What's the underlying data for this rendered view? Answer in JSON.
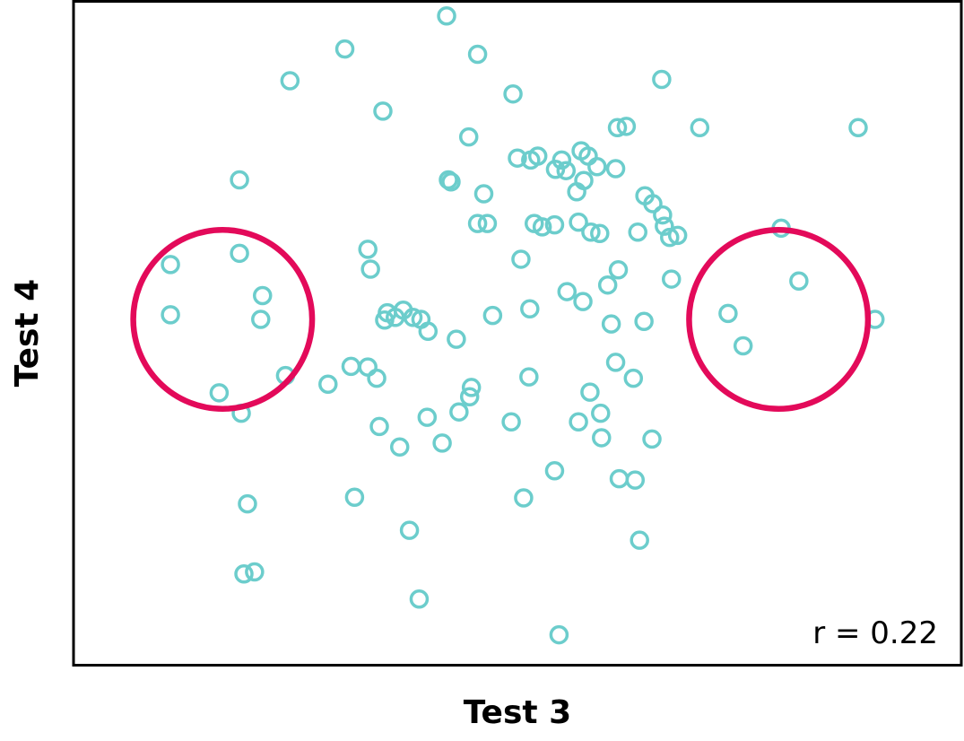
{
  "chart_data": {
    "type": "scatter",
    "title": "",
    "xlabel": "Test 3",
    "ylabel": "Test 4",
    "annotation": "r = 0.22",
    "xlim": [
      0,
      100
    ],
    "ylim": [
      0,
      100
    ],
    "grid": false,
    "ticks_shown": false,
    "point_color": "#6ccdcc",
    "highlight_color": "#e30a5a",
    "series": [
      {
        "values": [
          {
            "x": 42,
            "y": 98
          },
          {
            "x": 30.5,
            "y": 93
          },
          {
            "x": 45.5,
            "y": 92.2
          },
          {
            "x": 24.3,
            "y": 88.2
          },
          {
            "x": 34.8,
            "y": 83.6
          },
          {
            "x": 49.5,
            "y": 86.2
          },
          {
            "x": 66.3,
            "y": 88.4
          },
          {
            "x": 70.6,
            "y": 81.1
          },
          {
            "x": 88.5,
            "y": 81.1
          },
          {
            "x": 61.3,
            "y": 81.1
          },
          {
            "x": 62.3,
            "y": 81.3
          },
          {
            "x": 44.5,
            "y": 79.7
          },
          {
            "x": 57.2,
            "y": 77.6
          },
          {
            "x": 50,
            "y": 76.5
          },
          {
            "x": 51.5,
            "y": 76.2
          },
          {
            "x": 52.3,
            "y": 76.8
          },
          {
            "x": 55,
            "y": 76.2
          },
          {
            "x": 55.5,
            "y": 74.6
          },
          {
            "x": 54.3,
            "y": 74.8
          },
          {
            "x": 58,
            "y": 76.8
          },
          {
            "x": 59,
            "y": 75.2
          },
          {
            "x": 57.5,
            "y": 73.1
          },
          {
            "x": 61.1,
            "y": 74.9
          },
          {
            "x": 42.2,
            "y": 73.2
          },
          {
            "x": 42.5,
            "y": 72.9
          },
          {
            "x": 18.6,
            "y": 73.2
          },
          {
            "x": 46.2,
            "y": 71.1
          },
          {
            "x": 56.7,
            "y": 71.4
          },
          {
            "x": 64.4,
            "y": 70.8
          },
          {
            "x": 65.3,
            "y": 69.6
          },
          {
            "x": 45.5,
            "y": 66.6
          },
          {
            "x": 46.6,
            "y": 66.6
          },
          {
            "x": 51.9,
            "y": 66.6
          },
          {
            "x": 52.8,
            "y": 66.1
          },
          {
            "x": 54.2,
            "y": 66.4
          },
          {
            "x": 56.9,
            "y": 66.8
          },
          {
            "x": 58.3,
            "y": 65.3
          },
          {
            "x": 59.3,
            "y": 65.1
          },
          {
            "x": 63.6,
            "y": 65.3
          },
          {
            "x": 66.4,
            "y": 67.9
          },
          {
            "x": 66.6,
            "y": 66.2
          },
          {
            "x": 67.2,
            "y": 64.5
          },
          {
            "x": 68.1,
            "y": 64.8
          },
          {
            "x": 79.8,
            "y": 65.9
          },
          {
            "x": 33.1,
            "y": 62.7
          },
          {
            "x": 33.4,
            "y": 59.7
          },
          {
            "x": 18.6,
            "y": 62.1
          },
          {
            "x": 10.8,
            "y": 60.4
          },
          {
            "x": 50.4,
            "y": 61.2
          },
          {
            "x": 61.4,
            "y": 59.6
          },
          {
            "x": 67.4,
            "y": 58.2
          },
          {
            "x": 81.8,
            "y": 57.9
          },
          {
            "x": 21.2,
            "y": 55.7
          },
          {
            "x": 10.8,
            "y": 52.8
          },
          {
            "x": 21,
            "y": 52.1
          },
          {
            "x": 35.3,
            "y": 53.1
          },
          {
            "x": 37.1,
            "y": 53.5
          },
          {
            "x": 38.2,
            "y": 52.4
          },
          {
            "x": 36.2,
            "y": 52.4
          },
          {
            "x": 35,
            "y": 52
          },
          {
            "x": 39.1,
            "y": 52.1
          },
          {
            "x": 47.2,
            "y": 52.7
          },
          {
            "x": 51.4,
            "y": 53.7
          },
          {
            "x": 55.6,
            "y": 56.3
          },
          {
            "x": 57.4,
            "y": 54.8
          },
          {
            "x": 60.6,
            "y": 51.4
          },
          {
            "x": 64.3,
            "y": 51.8
          },
          {
            "x": 60.2,
            "y": 57.3
          },
          {
            "x": 75.5,
            "y": 48.1
          },
          {
            "x": 73.8,
            "y": 53
          },
          {
            "x": 90.4,
            "y": 52.1
          },
          {
            "x": 39.9,
            "y": 50.3
          },
          {
            "x": 43.1,
            "y": 49.1
          },
          {
            "x": 23.8,
            "y": 43.6
          },
          {
            "x": 31.2,
            "y": 45
          },
          {
            "x": 28.6,
            "y": 42.3
          },
          {
            "x": 33.1,
            "y": 44.9
          },
          {
            "x": 34.1,
            "y": 43.2
          },
          {
            "x": 16.3,
            "y": 41
          },
          {
            "x": 18.8,
            "y": 37.9
          },
          {
            "x": 44.8,
            "y": 41.8
          },
          {
            "x": 44.6,
            "y": 40.4
          },
          {
            "x": 51.3,
            "y": 43.4
          },
          {
            "x": 58.2,
            "y": 41.1
          },
          {
            "x": 59.4,
            "y": 37.9
          },
          {
            "x": 61.1,
            "y": 45.6
          },
          {
            "x": 63.1,
            "y": 43.2
          },
          {
            "x": 39.8,
            "y": 37.3
          },
          {
            "x": 34.4,
            "y": 35.9
          },
          {
            "x": 36.7,
            "y": 32.8
          },
          {
            "x": 41.5,
            "y": 33.4
          },
          {
            "x": 43.4,
            "y": 38.1
          },
          {
            "x": 49.3,
            "y": 36.6
          },
          {
            "x": 56.9,
            "y": 36.6
          },
          {
            "x": 59.5,
            "y": 34.2
          },
          {
            "x": 63.3,
            "y": 27.8
          },
          {
            "x": 61.5,
            "y": 28
          },
          {
            "x": 65.2,
            "y": 34
          },
          {
            "x": 54.2,
            "y": 29.2
          },
          {
            "x": 31.6,
            "y": 25.2
          },
          {
            "x": 19.5,
            "y": 24.2
          },
          {
            "x": 50.7,
            "y": 25.1
          },
          {
            "x": 37.8,
            "y": 20.2
          },
          {
            "x": 63.8,
            "y": 18.7
          },
          {
            "x": 20.3,
            "y": 13.9
          },
          {
            "x": 19.1,
            "y": 13.6
          },
          {
            "x": 38.9,
            "y": 9.8
          },
          {
            "x": 54.7,
            "y": 4.4
          }
        ]
      }
    ],
    "highlights": [
      {
        "cx": 16.7,
        "cy": 52.1,
        "r": 20.3
      },
      {
        "cx": 79.5,
        "cy": 52.1,
        "r": 20.3
      }
    ]
  }
}
